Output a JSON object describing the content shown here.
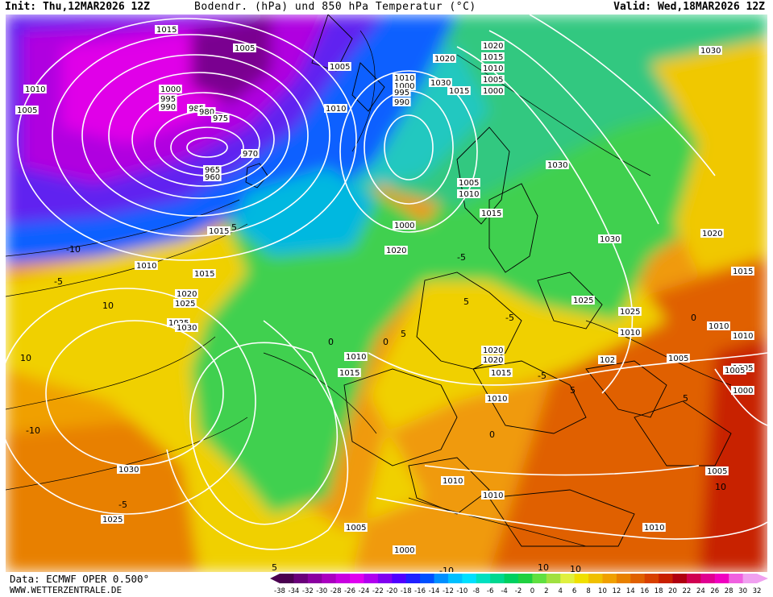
{
  "header": {
    "init": "Init: Thu,12MAR2026 12Z",
    "title": "Bodendr. (hPa) und 850 hPa Temperatur (°C)",
    "valid": "Valid: Wed,18MAR2026 12Z"
  },
  "footer": {
    "source": "Data: ECMWF OPER 0.500°",
    "site": "WWW.WETTERZENTRALE.DE"
  },
  "legend": {
    "ticks": [
      "-38",
      "-34",
      "-32",
      "-30",
      "-28",
      "-26",
      "-24",
      "-22",
      "-20",
      "-18",
      "-16",
      "-14",
      "-12",
      "-10",
      "-8",
      "-6",
      "-4",
      "-2",
      "0",
      "2",
      "4",
      "6",
      "8",
      "10",
      "12",
      "14",
      "16",
      "18",
      "20",
      "22",
      "24",
      "26",
      "28",
      "30",
      "32"
    ],
    "colors": [
      "#4a0050",
      "#6a007a",
      "#8a00a0",
      "#aa00c0",
      "#c800e0",
      "#e000f0",
      "#b000f0",
      "#8000f0",
      "#5000ff",
      "#2020ff",
      "#0050ff",
      "#0090ff",
      "#00c0ff",
      "#00e0ff",
      "#00e0c0",
      "#00d890",
      "#00d060",
      "#20d040",
      "#60e040",
      "#a0e040",
      "#e0f040",
      "#f0e000",
      "#f0c000",
      "#f0a000",
      "#e88000",
      "#e06000",
      "#d84000",
      "#c82000",
      "#b00010",
      "#d00050",
      "#e00090",
      "#f000c0",
      "#f060e0",
      "#f0a0f0"
    ]
  },
  "pressure_labels": [
    "1015",
    "1005",
    "1000",
    "995",
    "990",
    "985",
    "980",
    "975",
    "970",
    "965",
    "960",
    "1010",
    "1020",
    "1030",
    "1025",
    "1015",
    "1010",
    "1005",
    "1000",
    "995",
    "990",
    "1030",
    "1020",
    "1015",
    "1010",
    "1005",
    "1000",
    "1025",
    "1020",
    "1015",
    "1010",
    "1005",
    "1030",
    "1025",
    "1010",
    "1005",
    "1010",
    "1020",
    "1015",
    "1030",
    "1000",
    "1010",
    "1015",
    "1025",
    "1030",
    "1020",
    "1015",
    "1010",
    "1005",
    "1010",
    "1005",
    "1000",
    "1010",
    "1015",
    "1010",
    "1005",
    "1020",
    "1015",
    "1010",
    "1005",
    "1000",
    "1030",
    "1025",
    "102",
    "1020",
    "1010",
    "1005",
    "1010"
  ],
  "temp_labels": [
    "-10",
    "-5",
    "-10",
    "-5",
    "0",
    "5",
    "10",
    "10",
    "5",
    "0",
    "-5",
    "5",
    "10",
    "5",
    "0",
    "-5",
    "-10",
    "10",
    "5",
    "10",
    "0",
    "5",
    "-5"
  ]
}
